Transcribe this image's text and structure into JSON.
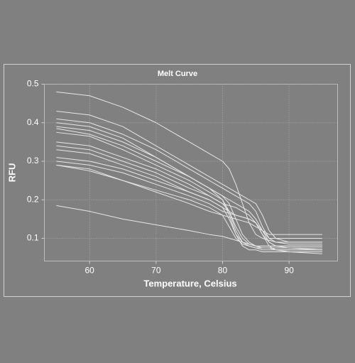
{
  "chart_data": {
    "type": "line",
    "title": "Melt Curve",
    "x_label": "Temperature, Celsius",
    "y_label": "RFU",
    "x": [
      55,
      60,
      65,
      70,
      75,
      78,
      80,
      81,
      82,
      83,
      84,
      85,
      86,
      87,
      88,
      90,
      95
    ],
    "color": "#e6e6e6",
    "series": [
      {
        "values": [
          0.48,
          0.47,
          0.44,
          0.4,
          0.35,
          0.32,
          0.3,
          0.28,
          0.24,
          0.19,
          0.14,
          0.11,
          0.1,
          0.095,
          0.09,
          0.09,
          0.09
        ]
      },
      {
        "values": [
          0.43,
          0.42,
          0.39,
          0.34,
          0.29,
          0.26,
          0.24,
          0.23,
          0.22,
          0.21,
          0.2,
          0.19,
          0.16,
          0.12,
          0.1,
          0.09,
          0.09
        ]
      },
      {
        "values": [
          0.41,
          0.4,
          0.37,
          0.33,
          0.28,
          0.25,
          0.23,
          0.22,
          0.21,
          0.2,
          0.19,
          0.17,
          0.13,
          0.1,
          0.09,
          0.085,
          0.085
        ]
      },
      {
        "values": [
          0.4,
          0.39,
          0.36,
          0.31,
          0.26,
          0.23,
          0.2,
          0.16,
          0.11,
          0.08,
          0.07,
          0.07,
          0.065,
          0.065,
          0.065,
          0.065,
          0.065
        ]
      },
      {
        "values": [
          0.39,
          0.38,
          0.35,
          0.31,
          0.26,
          0.23,
          0.21,
          0.19,
          0.15,
          0.11,
          0.09,
          0.08,
          0.075,
          0.075,
          0.075,
          0.075,
          0.075
        ]
      },
      {
        "values": [
          0.385,
          0.37,
          0.34,
          0.3,
          0.26,
          0.23,
          0.21,
          0.2,
          0.19,
          0.18,
          0.17,
          0.15,
          0.12,
          0.09,
          0.08,
          0.075,
          0.07
        ]
      },
      {
        "values": [
          0.375,
          0.365,
          0.33,
          0.29,
          0.25,
          0.22,
          0.2,
          0.17,
          0.12,
          0.09,
          0.08,
          0.075,
          0.07,
          0.07,
          0.07,
          0.07,
          0.07
        ]
      },
      {
        "values": [
          0.35,
          0.34,
          0.31,
          0.28,
          0.24,
          0.21,
          0.19,
          0.185,
          0.18,
          0.17,
          0.16,
          0.14,
          0.11,
          0.09,
          0.08,
          0.08,
          0.08
        ]
      },
      {
        "values": [
          0.34,
          0.33,
          0.3,
          0.27,
          0.23,
          0.21,
          0.19,
          0.17,
          0.13,
          0.1,
          0.085,
          0.08,
          0.08,
          0.08,
          0.08,
          0.08,
          0.08
        ]
      },
      {
        "values": [
          0.33,
          0.32,
          0.29,
          0.26,
          0.22,
          0.2,
          0.18,
          0.17,
          0.16,
          0.155,
          0.15,
          0.14,
          0.11,
          0.08,
          0.07,
          0.065,
          0.06
        ]
      },
      {
        "values": [
          0.31,
          0.3,
          0.28,
          0.25,
          0.22,
          0.2,
          0.18,
          0.15,
          0.11,
          0.09,
          0.085,
          0.08,
          0.08,
          0.08,
          0.08,
          0.08,
          0.08
        ]
      },
      {
        "values": [
          0.3,
          0.29,
          0.27,
          0.24,
          0.21,
          0.19,
          0.17,
          0.165,
          0.16,
          0.155,
          0.15,
          0.14,
          0.12,
          0.1,
          0.1,
          0.1,
          0.1
        ]
      },
      {
        "values": [
          0.29,
          0.28,
          0.25,
          0.22,
          0.19,
          0.17,
          0.16,
          0.155,
          0.15,
          0.145,
          0.14,
          0.13,
          0.12,
          0.11,
          0.11,
          0.11,
          0.11
        ]
      },
      {
        "values": [
          0.29,
          0.275,
          0.25,
          0.225,
          0.2,
          0.18,
          0.16,
          0.13,
          0.1,
          0.085,
          0.08,
          0.075,
          0.075,
          0.075,
          0.075,
          0.075,
          0.075
        ]
      },
      {
        "values": [
          0.185,
          0.17,
          0.15,
          0.135,
          0.12,
          0.11,
          0.105,
          0.1,
          0.095,
          0.09,
          0.085,
          0.08,
          0.075,
          0.075,
          0.07,
          0.07,
          0.07
        ]
      }
    ],
    "xlim": [
      53.2,
      97.3
    ],
    "xticks": [
      60,
      70,
      80,
      90
    ],
    "ylim": [
      0.041,
      0.5
    ],
    "yticks": [
      0.1,
      0.2,
      0.3,
      0.4,
      0.5
    ],
    "grid": true
  }
}
